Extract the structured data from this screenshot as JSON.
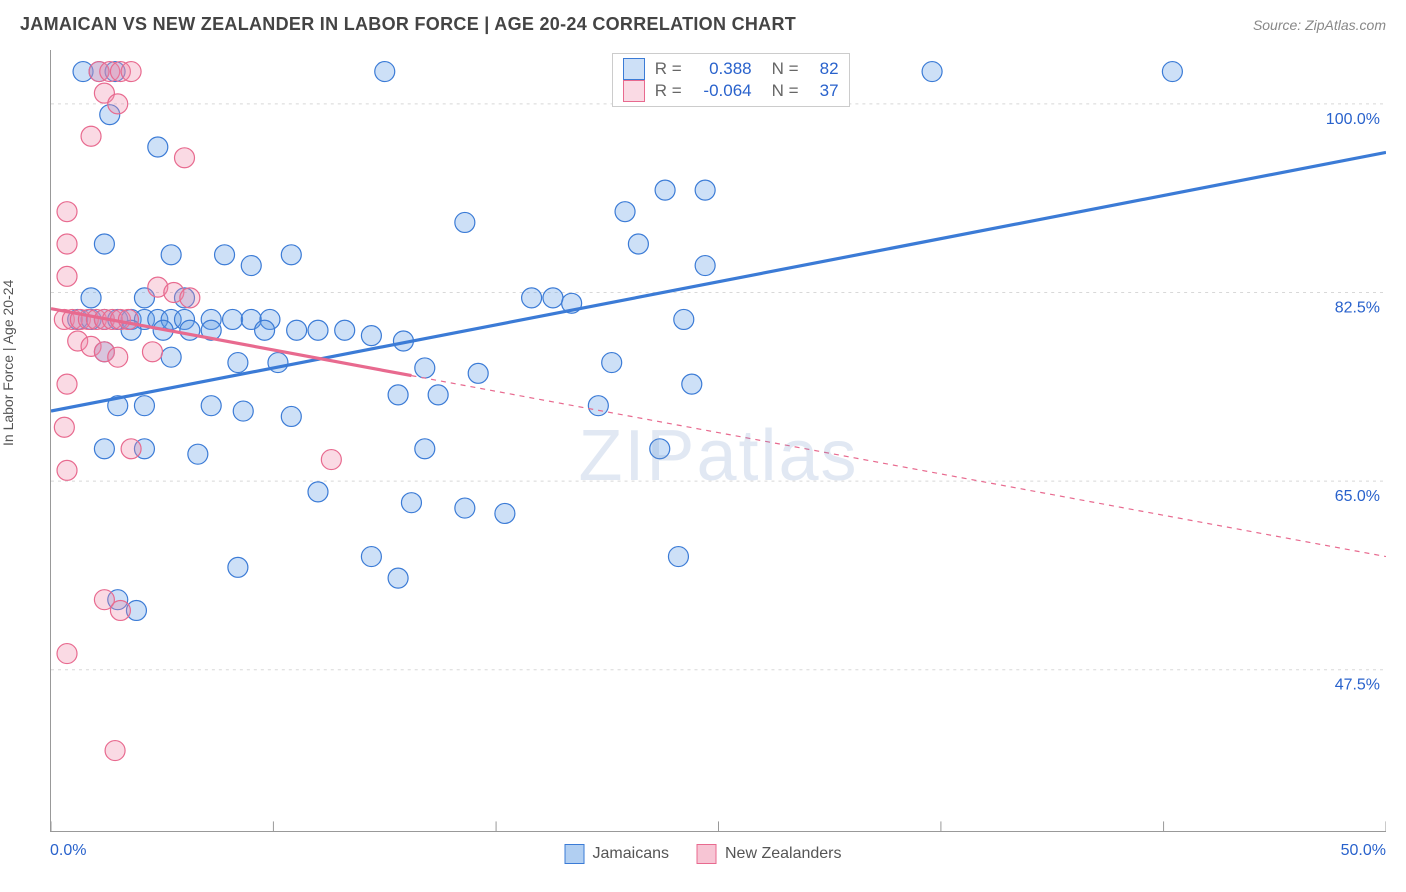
{
  "title": "JAMAICAN VS NEW ZEALANDER IN LABOR FORCE | AGE 20-24 CORRELATION CHART",
  "source_label": "Source: ZipAtlas.com",
  "y_axis_label": "In Labor Force | Age 20-24",
  "watermark": {
    "zip": "ZIP",
    "atlas": "atlas"
  },
  "chart": {
    "type": "scatter-with-regression",
    "background_color": "#ffffff",
    "grid_color": "#d8d8d8",
    "axis_color": "#999999",
    "xlim": [
      0,
      50
    ],
    "ylim": [
      32.5,
      105
    ],
    "x_ticks": [
      0,
      8.33,
      16.67,
      25,
      33.33,
      41.67,
      50
    ],
    "x_tick_labels_shown": {
      "left": "0.0%",
      "right": "50.0%"
    },
    "y_gridlines": [
      47.5,
      65.0,
      82.5,
      100.0
    ],
    "y_tick_labels": [
      "47.5%",
      "65.0%",
      "82.5%",
      "100.0%"
    ],
    "y_label_color": "#2962cc",
    "y_label_fontsize": 16,
    "marker_radius": 10,
    "marker_stroke_width": 1.2,
    "marker_fill_opacity": 0.32,
    "series": [
      {
        "name": "Jamaicans",
        "color": "#3b7bd6",
        "fill": "rgba(100,160,230,0.32)",
        "R": "0.388",
        "N": "82",
        "regression": {
          "x1": 0,
          "y1": 71.5,
          "x2": 50,
          "y2": 95.5,
          "solid_until_x": 50,
          "stroke_width": 3.2
        },
        "points": [
          [
            1.2,
            103
          ],
          [
            1.8,
            103
          ],
          [
            2.4,
            103
          ],
          [
            12.5,
            103
          ],
          [
            23.5,
            103
          ],
          [
            24.2,
            103
          ],
          [
            33,
            103
          ],
          [
            42,
            103
          ],
          [
            2.2,
            99
          ],
          [
            4,
            96
          ],
          [
            23,
            92
          ],
          [
            21.5,
            90
          ],
          [
            15.5,
            89
          ],
          [
            2,
            87
          ],
          [
            22,
            87
          ],
          [
            4.5,
            86
          ],
          [
            6.5,
            86
          ],
          [
            9,
            86
          ],
          [
            7.5,
            85
          ],
          [
            1.5,
            82
          ],
          [
            3.5,
            82
          ],
          [
            5,
            82
          ],
          [
            18,
            82
          ],
          [
            18.8,
            82
          ],
          [
            1,
            80
          ],
          [
            1.5,
            80
          ],
          [
            2,
            80
          ],
          [
            2.5,
            80
          ],
          [
            3,
            80
          ],
          [
            3.5,
            80
          ],
          [
            4,
            80
          ],
          [
            4.5,
            80
          ],
          [
            5,
            80
          ],
          [
            6,
            80
          ],
          [
            6.8,
            80
          ],
          [
            7.5,
            80
          ],
          [
            8.2,
            80
          ],
          [
            3,
            79
          ],
          [
            4.2,
            79
          ],
          [
            5.2,
            79
          ],
          [
            6,
            79
          ],
          [
            8,
            79
          ],
          [
            9.2,
            79
          ],
          [
            10,
            79
          ],
          [
            11,
            79
          ],
          [
            12,
            78.5
          ],
          [
            13.2,
            78
          ],
          [
            2,
            77
          ],
          [
            4.5,
            76.5
          ],
          [
            7,
            76
          ],
          [
            8.5,
            76
          ],
          [
            14,
            75.5
          ],
          [
            16,
            75
          ],
          [
            13,
            73
          ],
          [
            14.5,
            73
          ],
          [
            2.5,
            72
          ],
          [
            3.5,
            72
          ],
          [
            6,
            72
          ],
          [
            7.2,
            71.5
          ],
          [
            9,
            71
          ],
          [
            2,
            68
          ],
          [
            3.5,
            68
          ],
          [
            5.5,
            67.5
          ],
          [
            14,
            68
          ],
          [
            10,
            64
          ],
          [
            13.5,
            63
          ],
          [
            15.5,
            62.5
          ],
          [
            17,
            62
          ],
          [
            12,
            58
          ],
          [
            7,
            57
          ],
          [
            13,
            56
          ],
          [
            2.5,
            54
          ],
          [
            3.2,
            53
          ],
          [
            22.8,
            68
          ],
          [
            21,
            76
          ],
          [
            19.5,
            81.5
          ],
          [
            20.5,
            72
          ],
          [
            24,
            74
          ],
          [
            23.7,
            80
          ],
          [
            24.5,
            85
          ],
          [
            23.5,
            58
          ],
          [
            24.5,
            92
          ]
        ]
      },
      {
        "name": "New Zealanders",
        "color": "#e86a8f",
        "fill": "rgba(240,140,170,0.32)",
        "R": "-0.064",
        "N": "37",
        "regression": {
          "x1": 0,
          "y1": 81.0,
          "x2": 50,
          "y2": 58.0,
          "solid_until_x": 13.5,
          "stroke_width": 3.2
        },
        "points": [
          [
            1.8,
            103
          ],
          [
            2.2,
            103
          ],
          [
            2.6,
            103
          ],
          [
            3.0,
            103
          ],
          [
            2.0,
            101
          ],
          [
            2.5,
            100
          ],
          [
            1.5,
            97
          ],
          [
            5.0,
            95
          ],
          [
            0.6,
            90
          ],
          [
            0.6,
            87
          ],
          [
            0.6,
            84
          ],
          [
            0.5,
            80
          ],
          [
            0.8,
            80
          ],
          [
            1.1,
            80
          ],
          [
            1.4,
            80
          ],
          [
            1.7,
            80
          ],
          [
            2.0,
            80
          ],
          [
            2.3,
            80
          ],
          [
            2.6,
            80
          ],
          [
            2.9,
            80
          ],
          [
            1.0,
            78
          ],
          [
            1.5,
            77.5
          ],
          [
            2.0,
            77
          ],
          [
            2.5,
            76.5
          ],
          [
            0.6,
            74
          ],
          [
            4.0,
            83
          ],
          [
            4.6,
            82.5
          ],
          [
            5.2,
            82
          ],
          [
            3.8,
            77
          ],
          [
            0.5,
            70
          ],
          [
            0.6,
            66
          ],
          [
            3.0,
            68
          ],
          [
            10.5,
            67
          ],
          [
            2.0,
            54
          ],
          [
            2.6,
            53
          ],
          [
            0.6,
            49
          ],
          [
            2.4,
            40
          ]
        ]
      }
    ]
  },
  "bottom_legend": [
    {
      "label": "Jamaicans",
      "fill": "rgba(100,160,230,0.5)",
      "border": "#3b7bd6"
    },
    {
      "label": "New Zealanders",
      "fill": "rgba(240,140,170,0.5)",
      "border": "#e86a8f"
    }
  ],
  "r_legend_labels": {
    "R": "R =",
    "N": "N ="
  }
}
